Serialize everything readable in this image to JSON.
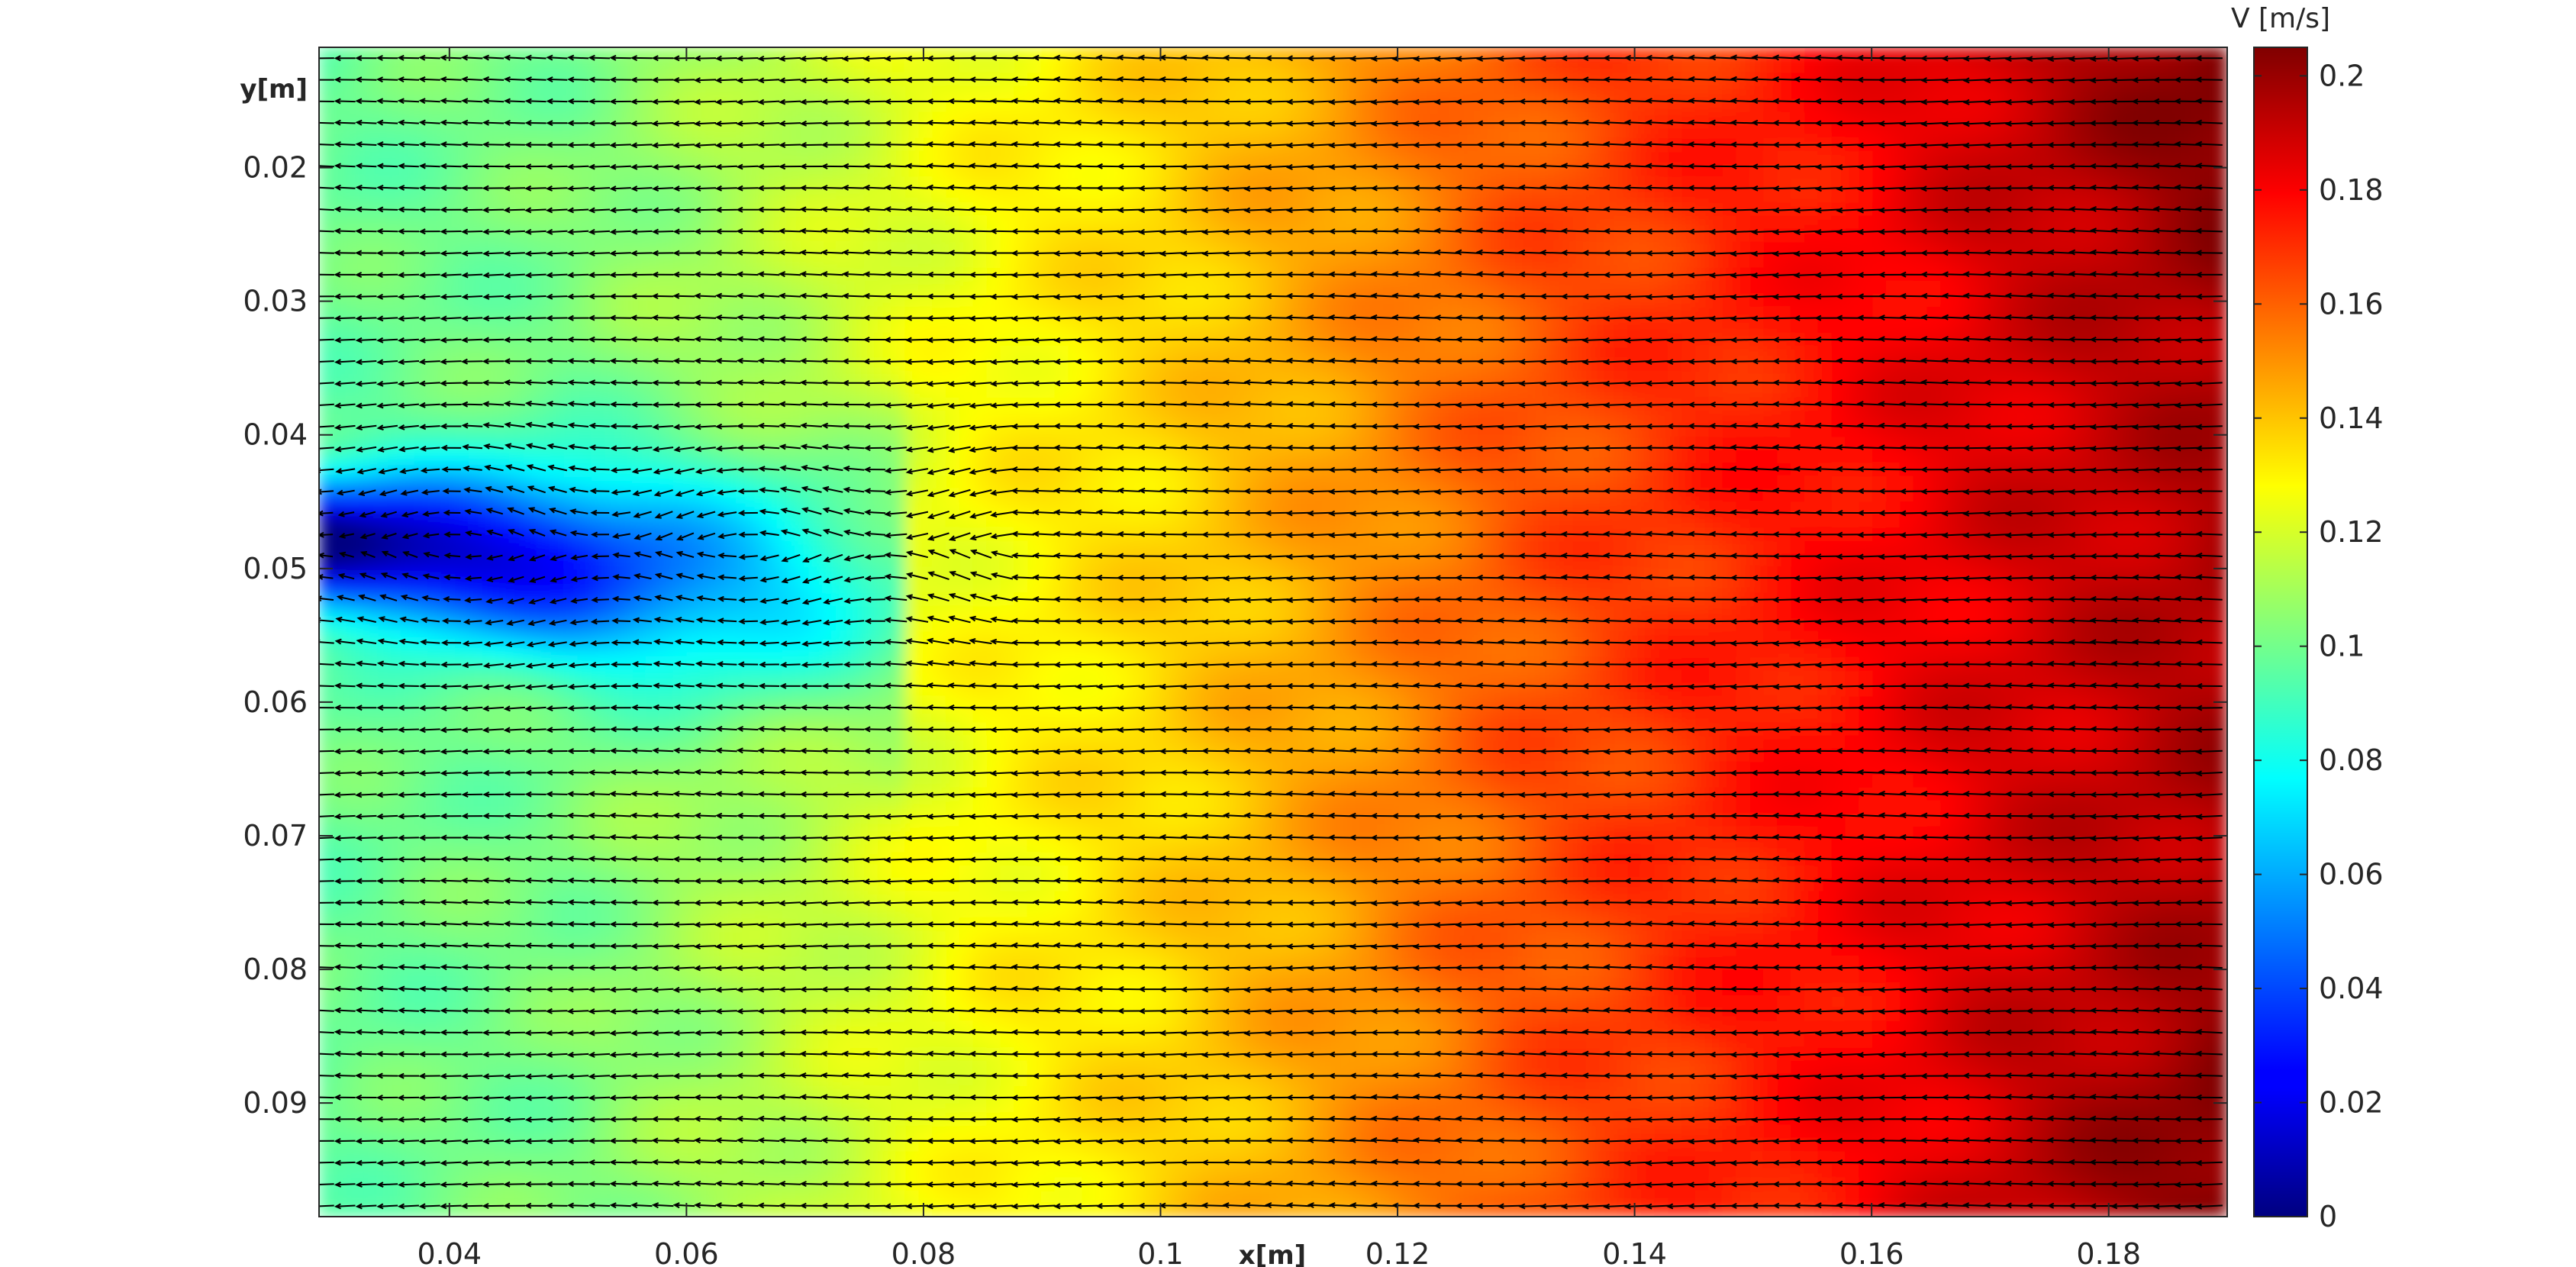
{
  "chart_data": {
    "type": "heatmap",
    "subtype": "velocity field with quiver arrows",
    "xlabel": "x[m]",
    "ylabel": "y[m]",
    "xlim": [
      0.029,
      0.19
    ],
    "ylim": [
      0.011,
      0.0985
    ],
    "y_axis_direction": "reversed (increasing downward)",
    "xticks": [
      0.04,
      0.06,
      0.08,
      0.1,
      0.12,
      0.14,
      0.16,
      0.18
    ],
    "xtick_labels": [
      "0.04",
      "0.06",
      "0.08",
      "0.1",
      "0.12",
      "0.14",
      "0.16",
      "0.18"
    ],
    "yticks": [
      0.02,
      0.03,
      0.04,
      0.05,
      0.06,
      0.07,
      0.08,
      0.09
    ],
    "ytick_labels": [
      "0.02",
      "0.03",
      "0.04",
      "0.05",
      "0.06",
      "0.07",
      "0.08",
      "0.09"
    ],
    "colorbar": {
      "title": "V [m/s]",
      "colormap": "jet",
      "range": [
        0,
        0.205
      ],
      "ticks": [
        0,
        0.02,
        0.04,
        0.06,
        0.08,
        0.1,
        0.12,
        0.14,
        0.16,
        0.18,
        0.2
      ],
      "tick_labels": [
        "0",
        "0.02",
        "0.04",
        "0.06",
        "0.08",
        "0.1",
        "0.12",
        "0.14",
        "0.16",
        "0.18",
        "0.2"
      ]
    },
    "field_profile_x": {
      "x": [
        0.029,
        0.05,
        0.07,
        0.085,
        0.1,
        0.115,
        0.13,
        0.15,
        0.17,
        0.19
      ],
      "v": [
        0.098,
        0.102,
        0.116,
        0.128,
        0.136,
        0.148,
        0.162,
        0.174,
        0.186,
        0.196
      ]
    },
    "low_velocity_wake": {
      "x_range": [
        0.029,
        0.078
      ],
      "y_center": 0.048,
      "v_min": 0.035
    },
    "arrow_direction": "leftward (negative x)",
    "arrow_grid": {
      "nx": 90,
      "ny": 54
    }
  }
}
